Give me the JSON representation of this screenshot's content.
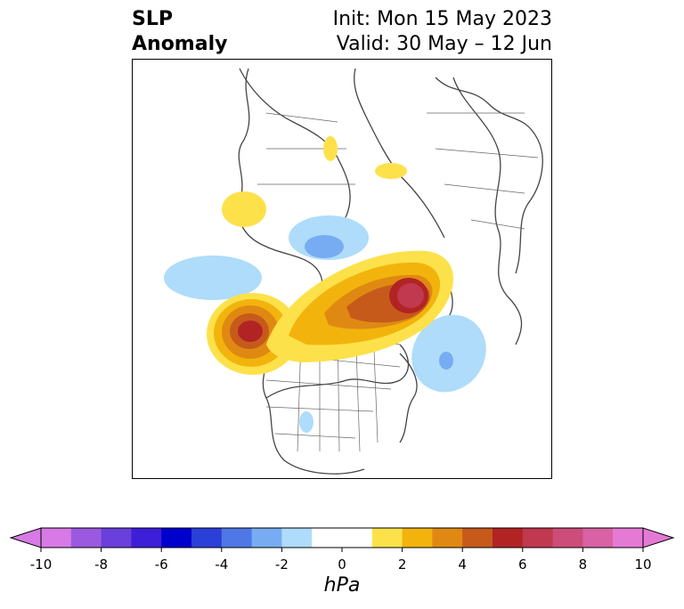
{
  "title": {
    "left": "SLP\nAnomaly",
    "right_line1": "Init: Mon 15 May 2023",
    "right_line2": "Valid: 30 May – 12 Jun"
  },
  "colorbar": {
    "ticks": [
      "-10",
      "-8",
      "-6",
      "-4",
      "-2",
      "0",
      "2",
      "4",
      "6",
      "8",
      "10"
    ],
    "unit": "hPa",
    "colors": [
      "#d87ae6",
      "#9b59e0",
      "#6a3fdb",
      "#3d1fd8",
      "#0000cc",
      "#2b3fd9",
      "#4f78e6",
      "#77acf2",
      "#aedcfa",
      "#ffffff",
      "#ffffff",
      "#fde14a",
      "#f2b40c",
      "#df8913",
      "#c65a1b",
      "#b22424",
      "#c0394e",
      "#cc4d7a",
      "#d862a4",
      "#e57ad5"
    ],
    "neg_extend_color": "#d87ae6",
    "pos_extend_color": "#e57ad5"
  }
}
